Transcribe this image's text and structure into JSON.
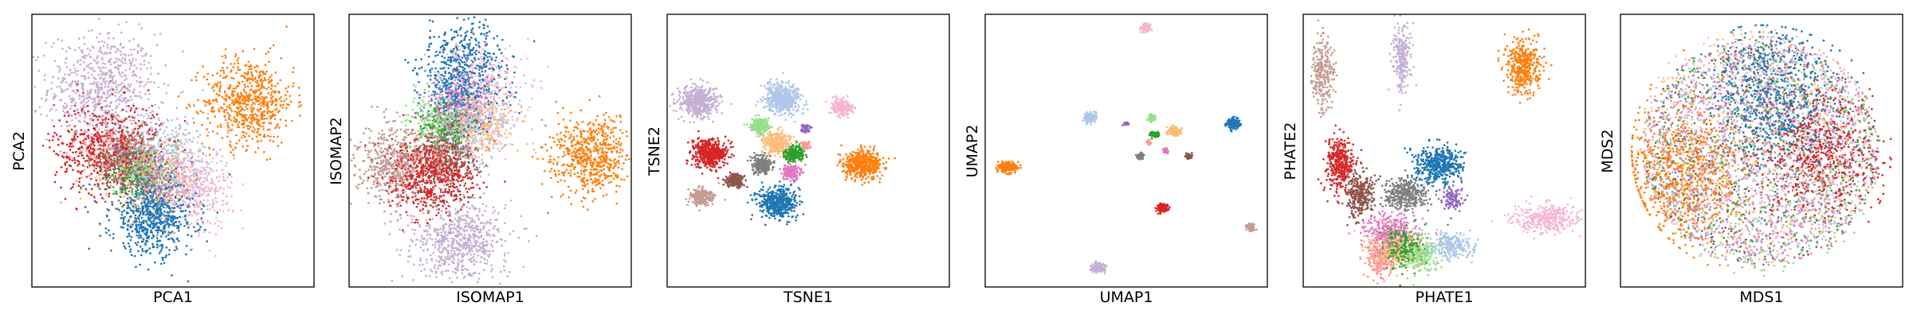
{
  "figure_title": "",
  "chart_data": [
    {
      "type": "scatter",
      "method": "PCA",
      "xlabel": "PCA1",
      "ylabel": "PCA2",
      "xlim": [
        0,
        10
      ],
      "ylim": [
        0,
        10
      ],
      "ticks_visible": false,
      "legend": "none",
      "clusters": [
        {
          "color": "#c5b0d5",
          "cx": 2.5,
          "cy": 7.3,
          "sx": 0.95,
          "sy": 1.0,
          "n": 700
        },
        {
          "color": "#ff7f0e",
          "cx": 7.7,
          "cy": 6.8,
          "sx": 0.8,
          "sy": 0.8,
          "n": 650
        },
        {
          "color": "#d62728",
          "cx": 2.7,
          "cy": 5.1,
          "sx": 0.95,
          "sy": 0.85,
          "n": 600
        },
        {
          "color": "#aec7e8",
          "cx": 5.0,
          "cy": 4.6,
          "sx": 0.8,
          "sy": 0.9,
          "n": 350
        },
        {
          "color": "#1f77b4",
          "cx": 4.3,
          "cy": 2.6,
          "sx": 0.75,
          "sy": 0.7,
          "n": 700
        },
        {
          "color": "#ffbb78",
          "cx": 4.4,
          "cy": 3.9,
          "sx": 0.8,
          "sy": 0.7,
          "n": 300
        },
        {
          "color": "#f7b6d2",
          "cx": 5.9,
          "cy": 3.6,
          "sx": 0.6,
          "sy": 0.7,
          "n": 300
        },
        {
          "color": "#98df8a",
          "cx": 3.9,
          "cy": 4.4,
          "sx": 0.6,
          "sy": 0.55,
          "n": 250
        },
        {
          "color": "#c49c94",
          "cx": 3.4,
          "cy": 4.8,
          "sx": 0.6,
          "sy": 0.55,
          "n": 250
        },
        {
          "color": "#8c564b",
          "cx": 3.0,
          "cy": 4.6,
          "sx": 0.45,
          "sy": 0.45,
          "n": 150
        },
        {
          "color": "#2ca02c",
          "cx": 3.6,
          "cy": 4.2,
          "sx": 0.45,
          "sy": 0.45,
          "n": 150
        },
        {
          "color": "#e377c2",
          "cx": 4.6,
          "cy": 4.0,
          "sx": 0.5,
          "sy": 0.5,
          "n": 150
        },
        {
          "color": "#7f7f7f",
          "cx": 4.0,
          "cy": 4.0,
          "sx": 0.45,
          "sy": 0.45,
          "n": 150
        },
        {
          "color": "#ff9896",
          "cx": 2.8,
          "cy": 4.9,
          "sx": 0.5,
          "sy": 0.5,
          "n": 150
        },
        {
          "color": "#9467bd",
          "cx": 3.5,
          "cy": 5.0,
          "sx": 0.45,
          "sy": 0.45,
          "n": 100
        }
      ]
    },
    {
      "type": "scatter",
      "method": "ISOMAP",
      "xlabel": "ISOMAP1",
      "ylabel": "ISOMAP2",
      "xlim": [
        0,
        10
      ],
      "ylim": [
        0,
        10
      ],
      "ticks_visible": false,
      "legend": "none",
      "clusters": [
        {
          "color": "#1f77b4",
          "cx": 4.1,
          "cy": 7.9,
          "sx": 0.7,
          "sy": 0.9,
          "n": 600
        },
        {
          "color": "#f7b6d2",
          "cx": 4.8,
          "cy": 7.3,
          "sx": 0.8,
          "sy": 0.9,
          "n": 300
        },
        {
          "color": "#aec7e8",
          "cx": 4.2,
          "cy": 6.1,
          "sx": 0.8,
          "sy": 0.8,
          "n": 400
        },
        {
          "color": "#ffbb78",
          "cx": 4.6,
          "cy": 6.0,
          "sx": 0.6,
          "sy": 0.6,
          "n": 300
        },
        {
          "color": "#c49c94",
          "cx": 1.5,
          "cy": 4.5,
          "sx": 0.65,
          "sy": 0.7,
          "n": 500
        },
        {
          "color": "#d62728",
          "cx": 2.9,
          "cy": 4.2,
          "sx": 0.8,
          "sy": 0.75,
          "n": 650
        },
        {
          "color": "#8c564b",
          "cx": 3.4,
          "cy": 4.4,
          "sx": 0.5,
          "sy": 0.5,
          "n": 200
        },
        {
          "color": "#2ca02c",
          "cx": 3.3,
          "cy": 5.8,
          "sx": 0.5,
          "sy": 0.5,
          "n": 200
        },
        {
          "color": "#98df8a",
          "cx": 3.0,
          "cy": 6.0,
          "sx": 0.5,
          "sy": 0.5,
          "n": 200
        },
        {
          "color": "#ff7f0e",
          "cx": 8.5,
          "cy": 4.8,
          "sx": 0.7,
          "sy": 0.7,
          "n": 600
        },
        {
          "color": "#c5b0d5",
          "cx": 3.9,
          "cy": 1.6,
          "sx": 0.9,
          "sy": 0.7,
          "n": 650
        },
        {
          "color": "#7f7f7f",
          "cx": 3.6,
          "cy": 5.3,
          "sx": 0.5,
          "sy": 0.5,
          "n": 150
        },
        {
          "color": "#e377c2",
          "cx": 4.0,
          "cy": 6.6,
          "sx": 0.5,
          "sy": 0.5,
          "n": 150
        },
        {
          "color": "#9467bd",
          "cx": 3.7,
          "cy": 6.8,
          "sx": 0.5,
          "sy": 0.5,
          "n": 120
        },
        {
          "color": "#ff9896",
          "cx": 3.2,
          "cy": 4.9,
          "sx": 0.5,
          "sy": 0.5,
          "n": 120
        }
      ]
    },
    {
      "type": "scatter",
      "method": "TSNE",
      "xlabel": "TSNE1",
      "ylabel": "TSNE2",
      "xlim": [
        0,
        10
      ],
      "ylim": [
        0,
        10
      ],
      "ticks_visible": false,
      "legend": "none",
      "clusters": [
        {
          "color": "#c5b0d5",
          "cx": 1.1,
          "cy": 6.8,
          "sx": 0.35,
          "sy": 0.28,
          "n": 500
        },
        {
          "color": "#aec7e8",
          "cx": 4.1,
          "cy": 6.9,
          "sx": 0.32,
          "sy": 0.28,
          "n": 500
        },
        {
          "color": "#f7b6d2",
          "cx": 6.2,
          "cy": 6.6,
          "sx": 0.2,
          "sy": 0.14,
          "n": 250
        },
        {
          "color": "#98df8a",
          "cx": 3.3,
          "cy": 5.9,
          "sx": 0.16,
          "sy": 0.13,
          "n": 200
        },
        {
          "color": "#9467bd",
          "cx": 4.9,
          "cy": 5.8,
          "sx": 0.08,
          "sy": 0.08,
          "n": 60
        },
        {
          "color": "#d62728",
          "cx": 1.5,
          "cy": 4.9,
          "sx": 0.3,
          "sy": 0.25,
          "n": 500
        },
        {
          "color": "#ffbb78",
          "cx": 3.9,
          "cy": 5.3,
          "sx": 0.25,
          "sy": 0.2,
          "n": 300
        },
        {
          "color": "#ff9896",
          "cx": 4.9,
          "cy": 5.2,
          "sx": 0.08,
          "sy": 0.08,
          "n": 60
        },
        {
          "color": "#2ca02c",
          "cx": 4.5,
          "cy": 4.9,
          "sx": 0.18,
          "sy": 0.14,
          "n": 250
        },
        {
          "color": "#7f7f7f",
          "cx": 3.4,
          "cy": 4.5,
          "sx": 0.18,
          "sy": 0.15,
          "n": 250
        },
        {
          "color": "#e377c2",
          "cx": 4.4,
          "cy": 4.2,
          "sx": 0.15,
          "sy": 0.12,
          "n": 200
        },
        {
          "color": "#ff7f0e",
          "cx": 6.9,
          "cy": 4.5,
          "sx": 0.34,
          "sy": 0.26,
          "n": 500
        },
        {
          "color": "#8c564b",
          "cx": 2.4,
          "cy": 3.9,
          "sx": 0.15,
          "sy": 0.12,
          "n": 200
        },
        {
          "color": "#c49c94",
          "cx": 1.2,
          "cy": 3.3,
          "sx": 0.2,
          "sy": 0.16,
          "n": 250
        },
        {
          "color": "#1f77b4",
          "cx": 3.9,
          "cy": 3.1,
          "sx": 0.34,
          "sy": 0.28,
          "n": 500
        }
      ]
    },
    {
      "type": "scatter",
      "method": "UMAP",
      "xlabel": "UMAP1",
      "ylabel": "UMAP2",
      "xlim": [
        0,
        10
      ],
      "ylim": [
        0,
        10
      ],
      "ticks_visible": false,
      "legend": "none",
      "clusters": [
        {
          "color": "#f7b6d2",
          "cx": 5.7,
          "cy": 9.5,
          "sx": 0.08,
          "sy": 0.07,
          "n": 120
        },
        {
          "color": "#ff7f0e",
          "cx": 0.8,
          "cy": 4.4,
          "sx": 0.15,
          "sy": 0.1,
          "n": 200
        },
        {
          "color": "#aec7e8",
          "cx": 3.7,
          "cy": 6.2,
          "sx": 0.1,
          "sy": 0.09,
          "n": 150
        },
        {
          "color": "#9467bd",
          "cx": 5.0,
          "cy": 6.0,
          "sx": 0.05,
          "sy": 0.04,
          "n": 30
        },
        {
          "color": "#98df8a",
          "cx": 5.9,
          "cy": 6.2,
          "sx": 0.06,
          "sy": 0.06,
          "n": 60
        },
        {
          "color": "#ffbb78",
          "cx": 6.7,
          "cy": 5.7,
          "sx": 0.12,
          "sy": 0.08,
          "n": 150
        },
        {
          "color": "#2ca02c",
          "cx": 6.0,
          "cy": 5.6,
          "sx": 0.08,
          "sy": 0.05,
          "n": 100
        },
        {
          "color": "#1f77b4",
          "cx": 8.8,
          "cy": 6.0,
          "sx": 0.11,
          "sy": 0.09,
          "n": 200
        },
        {
          "color": "#e377c2",
          "cx": 6.4,
          "cy": 5.0,
          "sx": 0.05,
          "sy": 0.05,
          "n": 40
        },
        {
          "color": "#7f7f7f",
          "cx": 5.5,
          "cy": 4.8,
          "sx": 0.06,
          "sy": 0.05,
          "n": 60
        },
        {
          "color": "#8c564b",
          "cx": 7.2,
          "cy": 4.8,
          "sx": 0.06,
          "sy": 0.05,
          "n": 60
        },
        {
          "color": "#ff9896",
          "cx": 5.8,
          "cy": 5.3,
          "sx": 0.04,
          "sy": 0.04,
          "n": 30
        },
        {
          "color": "#d62728",
          "cx": 6.3,
          "cy": 2.9,
          "sx": 0.09,
          "sy": 0.08,
          "n": 150
        },
        {
          "color": "#c49c94",
          "cx": 9.4,
          "cy": 2.2,
          "sx": 0.07,
          "sy": 0.06,
          "n": 80
        },
        {
          "color": "#c5b0d5",
          "cx": 4.0,
          "cy": 0.7,
          "sx": 0.12,
          "sy": 0.08,
          "n": 150
        }
      ]
    },
    {
      "type": "scatter",
      "method": "PHATE",
      "xlabel": "PHATE1",
      "ylabel": "PHATE2",
      "xlim": [
        0,
        10
      ],
      "ylim": [
        0,
        10
      ],
      "ticks_visible": false,
      "legend": "none",
      "clusters": [
        {
          "color": "#c49c94",
          "cx": 0.7,
          "cy": 7.8,
          "sx": 0.2,
          "sy": 0.7,
          "n": 250
        },
        {
          "color": "#c5b0d5",
          "cx": 3.5,
          "cy": 8.5,
          "sx": 0.15,
          "sy": 0.7,
          "n": 250
        },
        {
          "color": "#ff7f0e",
          "cx": 7.8,
          "cy": 8.1,
          "sx": 0.3,
          "sy": 0.5,
          "n": 400
        },
        {
          "color": "#d62728",
          "cx": 1.3,
          "cy": 4.5,
          "sx": 0.25,
          "sy": 0.45,
          "n": 350
        },
        {
          "color": "#1f77b4",
          "cx": 4.8,
          "cy": 4.5,
          "sx": 0.4,
          "sy": 0.35,
          "n": 450
        },
        {
          "color": "#8c564b",
          "cx": 2.0,
          "cy": 3.4,
          "sx": 0.25,
          "sy": 0.4,
          "n": 300
        },
        {
          "color": "#7f7f7f",
          "cx": 3.6,
          "cy": 3.4,
          "sx": 0.4,
          "sy": 0.3,
          "n": 350
        },
        {
          "color": "#9467bd",
          "cx": 5.3,
          "cy": 3.2,
          "sx": 0.2,
          "sy": 0.25,
          "n": 100
        },
        {
          "color": "#f7b6d2",
          "cx": 8.6,
          "cy": 2.5,
          "sx": 0.55,
          "sy": 0.25,
          "n": 350
        },
        {
          "color": "#e377c2",
          "cx": 3.1,
          "cy": 2.0,
          "sx": 0.5,
          "sy": 0.35,
          "n": 300
        },
        {
          "color": "#2ca02c",
          "cx": 3.5,
          "cy": 1.5,
          "sx": 0.4,
          "sy": 0.35,
          "n": 300
        },
        {
          "color": "#ffbb78",
          "cx": 3.2,
          "cy": 1.4,
          "sx": 0.5,
          "sy": 0.35,
          "n": 250
        },
        {
          "color": "#98df8a",
          "cx": 4.1,
          "cy": 1.2,
          "sx": 0.3,
          "sy": 0.3,
          "n": 250
        },
        {
          "color": "#ff9896",
          "cx": 2.7,
          "cy": 1.0,
          "sx": 0.25,
          "sy": 0.3,
          "n": 200
        },
        {
          "color": "#aec7e8",
          "cx": 5.2,
          "cy": 1.5,
          "sx": 0.4,
          "sy": 0.25,
          "n": 250
        }
      ]
    },
    {
      "type": "scatter",
      "method": "MDS",
      "xlabel": "MDS1",
      "ylabel": "MDS2",
      "xlim": [
        0,
        10
      ],
      "ylim": [
        0,
        10
      ],
      "ticks_visible": false,
      "legend": "none",
      "clusters": [
        {
          "color": "#c5b0d5",
          "cx": 5.0,
          "cy": 5.0,
          "sx": 2.4,
          "sy": 2.4,
          "n": 500
        },
        {
          "color": "#aec7e8",
          "cx": 5.0,
          "cy": 5.0,
          "sx": 2.4,
          "sy": 2.4,
          "n": 500
        },
        {
          "color": "#ffbb78",
          "cx": 4.8,
          "cy": 5.2,
          "sx": 2.4,
          "sy": 2.4,
          "n": 400
        },
        {
          "color": "#f7b6d2",
          "cx": 4.6,
          "cy": 5.4,
          "sx": 2.4,
          "sy": 2.4,
          "n": 350
        },
        {
          "color": "#98df8a",
          "cx": 5.0,
          "cy": 4.6,
          "sx": 2.4,
          "sy": 2.4,
          "n": 300
        },
        {
          "color": "#c49c94",
          "cx": 5.0,
          "cy": 4.8,
          "sx": 2.4,
          "sy": 2.4,
          "n": 300
        },
        {
          "color": "#2ca02c",
          "cx": 5.0,
          "cy": 5.0,
          "sx": 2.4,
          "sy": 2.4,
          "n": 300
        },
        {
          "color": "#e377c2",
          "cx": 5.0,
          "cy": 5.0,
          "sx": 2.4,
          "sy": 2.4,
          "n": 300
        },
        {
          "color": "#8c564b",
          "cx": 5.0,
          "cy": 5.0,
          "sx": 2.4,
          "sy": 2.4,
          "n": 250
        },
        {
          "color": "#9467bd",
          "cx": 5.0,
          "cy": 5.0,
          "sx": 2.4,
          "sy": 2.4,
          "n": 200
        },
        {
          "color": "#7f7f7f",
          "cx": 5.0,
          "cy": 5.0,
          "sx": 2.4,
          "sy": 2.4,
          "n": 200
        },
        {
          "color": "#ff9896",
          "cx": 5.0,
          "cy": 5.0,
          "sx": 2.4,
          "sy": 2.4,
          "n": 200
        },
        {
          "color": "#1f77b4",
          "cx": 5.4,
          "cy": 6.9,
          "sx": 1.1,
          "sy": 1.2,
          "n": 700
        },
        {
          "color": "#d62728",
          "cx": 7.1,
          "cy": 4.9,
          "sx": 1.1,
          "sy": 1.1,
          "n": 600
        },
        {
          "color": "#ff7f0e",
          "cx": 2.2,
          "cy": 4.1,
          "sx": 1.1,
          "sy": 1.2,
          "n": 750
        }
      ]
    }
  ]
}
